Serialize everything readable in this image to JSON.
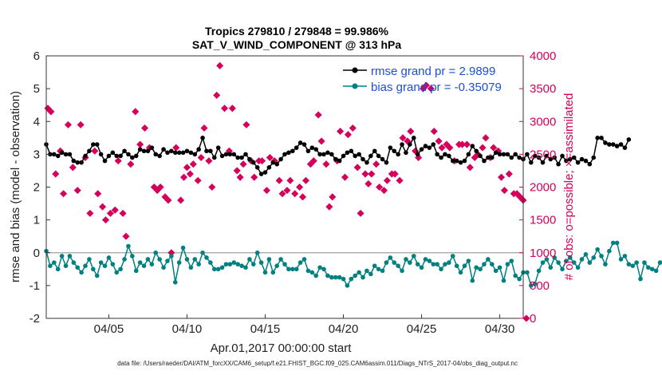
{
  "chart_data": {
    "type": "line",
    "title": "Tropics 279810 / 279848 = 99.986%",
    "subtitle": "SAT_V_WIND_COMPONENT @ 313 hPa",
    "xlabel": "Apr.01,2017 00:00:00 start",
    "ylabel": "rmse and bias (model - observation)",
    "y2label": "# of obs: o=possible; ×=assimilated",
    "xlim": [
      1,
      31.5
    ],
    "ylim": [
      -2,
      6
    ],
    "y2lim": [
      0,
      4000
    ],
    "xticks": [
      5,
      10,
      15,
      20,
      25,
      30
    ],
    "xtick_labels": [
      "04/05",
      "04/10",
      "04/15",
      "04/20",
      "04/25",
      "04/30"
    ],
    "yticks": [
      "-2",
      "-1",
      "0",
      "1",
      "2",
      "3",
      "4",
      "5",
      "6"
    ],
    "y2ticks": [
      "0",
      "500",
      "1000",
      "1500",
      "2000",
      "2500",
      "3000",
      "3500",
      "4000"
    ],
    "legend_position": "top-right",
    "footer": "data file: /Users/raeder/DAI/ATM_forcXX/CAM6_setup/f.e21.FHIST_BGC.f09_025.CAM6assim.011/Diags_NTrS_2017-04/obs_diag_output.nc",
    "series": [
      {
        "name": "rmse grand pr = 2.9899",
        "axis": "left",
        "color": "#000000",
        "x_start": 1.0,
        "x_step": 0.25,
        "values": [
          3.3,
          3.0,
          3.0,
          2.95,
          3.05,
          3.0,
          3.0,
          2.8,
          2.75,
          2.75,
          2.95,
          3.1,
          3.3,
          3.3,
          3.0,
          2.8,
          2.95,
          3.05,
          2.95,
          2.95,
          3.1,
          3.0,
          2.9,
          2.95,
          3.15,
          3.1,
          3.1,
          3.2,
          3.0,
          2.95,
          3.15,
          3.05,
          3.1,
          3.05,
          3.05,
          3.05,
          3.1,
          3.05,
          3.0,
          3.15,
          3.5,
          3.1,
          3.1,
          2.9,
          3.2,
          2.95,
          3.0,
          3.0,
          3.0,
          2.9,
          2.9,
          3.0,
          2.85,
          2.75,
          2.6,
          2.4,
          2.45,
          2.6,
          2.75,
          2.7,
          2.85,
          3.0,
          3.05,
          3.1,
          3.2,
          3.35,
          3.3,
          3.1,
          3.2,
          3.15,
          3.0,
          3.0,
          3.05,
          3.0,
          2.85,
          2.8,
          2.95,
          3.05,
          3.1,
          2.95,
          3.0,
          2.85,
          2.75,
          2.95,
          3.1,
          2.95,
          2.85,
          2.75,
          3.2,
          3.1,
          3.0,
          3.3,
          3.05,
          3.3,
          3.5,
          3.0,
          3.15,
          3.25,
          3.2,
          3.3,
          3.0,
          2.9,
          3.0,
          2.95,
          2.8,
          2.8,
          2.75,
          2.8,
          3.0,
          3.25,
          3.1,
          2.95,
          2.8,
          2.9,
          2.9,
          3.05,
          3.0,
          3.0,
          3.0,
          2.9,
          3.0,
          2.9,
          2.85,
          3.0,
          2.75,
          2.95,
          2.9,
          2.75,
          2.95,
          2.85,
          2.9,
          2.7,
          2.95,
          2.8,
          2.85,
          2.9,
          2.75,
          2.85,
          2.8,
          2.7,
          2.9,
          3.5,
          3.5,
          3.35,
          3.3,
          3.3,
          3.25,
          3.3,
          3.2,
          3.45
        ]
      },
      {
        "name": "bias grand pr = -0.35079",
        "axis": "left",
        "color": "#008080",
        "x_start": 1.0,
        "x_step": 0.25,
        "values": [
          0.05,
          -0.4,
          -0.3,
          -0.5,
          -0.1,
          -0.4,
          -0.1,
          -0.3,
          -0.45,
          -0.6,
          -0.4,
          -0.2,
          -0.5,
          -0.7,
          -0.3,
          -0.4,
          -0.15,
          -0.35,
          -0.6,
          -0.5,
          -0.2,
          0.2,
          -0.1,
          -0.55,
          -0.3,
          -0.4,
          -0.2,
          -0.35,
          0.0,
          -0.2,
          -0.45,
          -0.25,
          -0.1,
          -0.9,
          -0.3,
          0.15,
          -0.2,
          -0.45,
          -0.2,
          -0.35,
          0.0,
          -0.15,
          -0.3,
          -0.5,
          -0.5,
          -0.45,
          -0.35,
          -0.35,
          -0.3,
          -0.35,
          -0.4,
          -0.45,
          -0.2,
          -0.35,
          0.0,
          -0.3,
          -0.6,
          -0.2,
          -0.6,
          -0.4,
          -0.2,
          -0.35,
          -0.5,
          -0.5,
          -0.5,
          -0.3,
          -0.2,
          -0.55,
          -0.6,
          -0.7,
          -0.45,
          -0.5,
          -0.7,
          -0.75,
          -0.75,
          -0.75,
          -0.8,
          -1.0,
          -0.8,
          -0.7,
          -0.6,
          -0.75,
          -0.55,
          -0.65,
          -0.4,
          -0.5,
          -0.55,
          -0.3,
          -0.15,
          -0.3,
          -0.4,
          -0.55,
          -0.2,
          -0.3,
          -0.1,
          -0.35,
          -0.45,
          -0.2,
          -0.25,
          -0.35,
          -0.35,
          -0.5,
          -0.35,
          -0.3,
          -0.1,
          -0.4,
          -0.6,
          -0.4,
          -0.25,
          -0.85,
          -0.45,
          -0.5,
          -0.35,
          -0.2,
          -0.35,
          -0.55,
          -0.45,
          -0.85,
          -0.35,
          -0.25,
          -0.7,
          -0.8,
          -0.6,
          -0.6,
          -1.0,
          -0.95,
          -0.55,
          -0.3,
          -0.2,
          -0.45,
          -0.15,
          -0.3,
          -0.5,
          -0.25,
          -0.15,
          -0.3,
          -0.45,
          -0.2,
          -0.05,
          -0.3,
          -0.15,
          0.1,
          -0.1,
          -0.35,
          0.05,
          0.3,
          0.3,
          -0.2,
          -0.1,
          -0.35,
          -0.4,
          -0.3,
          -0.8,
          -0.3,
          -0.45,
          -0.5,
          -0.55,
          -0.3,
          -0.25,
          -0.4
        ]
      }
    ],
    "markers": {
      "name": "# of obs assimilated",
      "axis": "right",
      "color": "#d6005a",
      "points": [
        [
          1.1,
          3200
        ],
        [
          1.3,
          3150
        ],
        [
          1.6,
          2200
        ],
        [
          1.9,
          2550
        ],
        [
          2.1,
          1900
        ],
        [
          2.4,
          2950
        ],
        [
          2.7,
          2300
        ],
        [
          3.0,
          1950
        ],
        [
          3.2,
          2950
        ],
        [
          3.5,
          2450
        ],
        [
          3.8,
          1600
        ],
        [
          4.1,
          2550
        ],
        [
          4.3,
          1900
        ],
        [
          4.6,
          1700
        ],
        [
          4.8,
          1500
        ],
        [
          5.1,
          1600
        ],
        [
          5.4,
          1650
        ],
        [
          5.6,
          2400
        ],
        [
          5.9,
          1600
        ],
        [
          6.1,
          1250
        ],
        [
          6.4,
          2350
        ],
        [
          6.7,
          3150
        ],
        [
          7.0,
          2650
        ],
        [
          7.3,
          2900
        ],
        [
          7.6,
          2600
        ],
        [
          7.9,
          2000
        ],
        [
          8.1,
          1950
        ],
        [
          8.3,
          2000
        ],
        [
          8.6,
          1850
        ],
        [
          8.8,
          1800
        ],
        [
          9.0,
          1000
        ],
        [
          9.3,
          2600
        ],
        [
          9.6,
          1800
        ],
        [
          9.8,
          2150
        ],
        [
          10.0,
          2300
        ],
        [
          10.2,
          2200
        ],
        [
          10.4,
          2350
        ],
        [
          10.7,
          2100
        ],
        [
          10.9,
          2450
        ],
        [
          11.1,
          2900
        ],
        [
          11.4,
          2400
        ],
        [
          11.6,
          2000
        ],
        [
          11.9,
          3400
        ],
        [
          12.1,
          3850
        ],
        [
          12.4,
          3200
        ],
        [
          12.7,
          2550
        ],
        [
          12.9,
          3200
        ],
        [
          13.2,
          2250
        ],
        [
          13.4,
          2150
        ],
        [
          13.6,
          2350
        ],
        [
          13.8,
          2950
        ],
        [
          14.1,
          2400
        ],
        [
          14.3,
          2150
        ],
        [
          14.6,
          2400
        ],
        [
          14.8,
          2400
        ],
        [
          15.1,
          1950
        ],
        [
          15.3,
          2450
        ],
        [
          15.6,
          2400
        ],
        [
          15.9,
          2100
        ],
        [
          16.1,
          1900
        ],
        [
          16.4,
          1950
        ],
        [
          16.6,
          2100
        ],
        [
          16.9,
          1900
        ],
        [
          17.2,
          2000
        ],
        [
          17.4,
          1850
        ],
        [
          17.6,
          2100
        ],
        [
          17.9,
          2350
        ],
        [
          18.1,
          2400
        ],
        [
          18.4,
          3100
        ],
        [
          18.6,
          2700
        ],
        [
          18.9,
          2350
        ],
        [
          19.1,
          1700
        ],
        [
          19.3,
          1850
        ],
        [
          19.6,
          2400
        ],
        [
          19.8,
          2850
        ],
        [
          20.1,
          2150
        ],
        [
          20.3,
          2800
        ],
        [
          20.6,
          2900
        ],
        [
          20.9,
          2300
        ],
        [
          21.1,
          1600
        ],
        [
          21.4,
          2200
        ],
        [
          21.6,
          2050
        ],
        [
          21.8,
          2200
        ],
        [
          22.1,
          2350
        ],
        [
          22.3,
          2000
        ],
        [
          22.6,
          1950
        ],
        [
          22.8,
          2100
        ],
        [
          23.1,
          2200
        ],
        [
          23.3,
          2200
        ],
        [
          23.6,
          2100
        ],
        [
          23.8,
          2750
        ],
        [
          24.1,
          2700
        ],
        [
          24.3,
          2850
        ],
        [
          24.6,
          2550
        ],
        [
          24.8,
          2450
        ],
        [
          25.1,
          3500
        ],
        [
          25.3,
          3550
        ],
        [
          25.6,
          3500
        ],
        [
          25.8,
          2850
        ],
        [
          26.1,
          2700
        ],
        [
          26.3,
          2600
        ],
        [
          26.6,
          2650
        ],
        [
          26.8,
          2600
        ],
        [
          27.1,
          2400
        ],
        [
          27.4,
          2650
        ],
        [
          27.6,
          2650
        ],
        [
          27.9,
          2650
        ],
        [
          28.1,
          2300
        ],
        [
          28.4,
          2450
        ],
        [
          28.6,
          2500
        ],
        [
          28.9,
          2600
        ],
        [
          29.1,
          2750
        ],
        [
          29.4,
          2450
        ],
        [
          29.6,
          2600
        ],
        [
          29.9,
          2550
        ],
        [
          30.1,
          2150
        ],
        [
          30.3,
          1950
        ],
        [
          30.6,
          2200
        ],
        [
          30.9,
          1900
        ],
        [
          31.1,
          1900
        ],
        [
          31.3,
          1850
        ],
        [
          31.5,
          1800
        ],
        [
          31.7,
          0
        ]
      ]
    }
  }
}
